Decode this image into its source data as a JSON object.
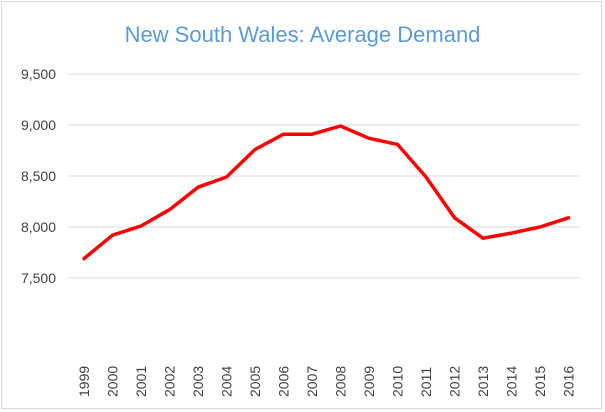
{
  "chart_data": {
    "type": "line",
    "title": "New South Wales: Average Demand",
    "xlabel": "",
    "ylabel": "",
    "categories": [
      "1999",
      "2000",
      "2001",
      "2002",
      "2003",
      "2004",
      "2005",
      "2006",
      "2007",
      "2008",
      "2009",
      "2010",
      "2011",
      "2012",
      "2013",
      "2014",
      "2015",
      "2016"
    ],
    "series": [
      {
        "color": "#ff0000",
        "values": [
          7690,
          7920,
          8010,
          8170,
          8390,
          8490,
          8760,
          8910,
          8910,
          8990,
          8870,
          8810,
          8490,
          8090,
          7890,
          7940,
          8000,
          8090
        ]
      }
    ],
    "ylim": [
      7500,
      9500
    ],
    "yticks": [
      7500,
      8000,
      8500,
      9000,
      9500
    ],
    "ytick_labels": [
      "7,500",
      "8,000",
      "8,500",
      "9,000",
      "9,500"
    ],
    "grid": true
  }
}
